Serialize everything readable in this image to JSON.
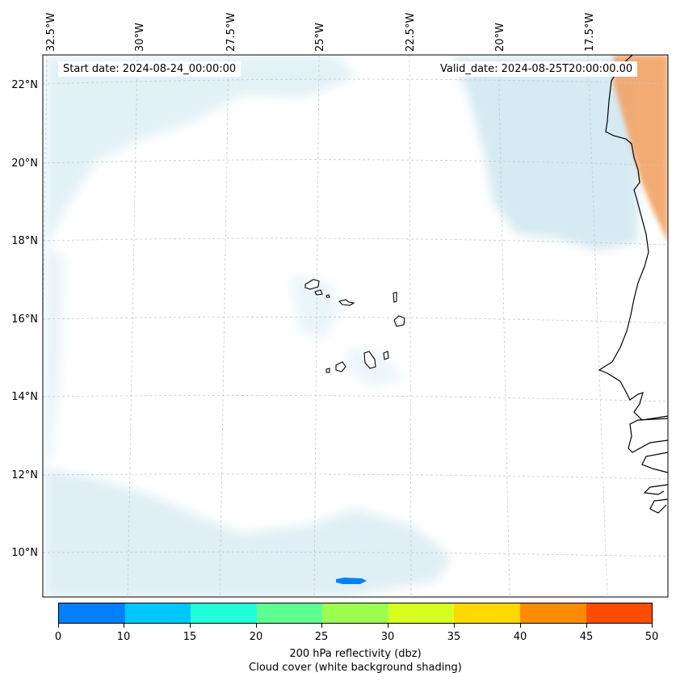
{
  "header": {
    "start_date": "Start date: 2024-08-24_00:00:00",
    "valid_date": "Valid_date: 2024-08-25T20:00:00.00"
  },
  "axes": {
    "lon_labels": [
      "32.5°W",
      "30°W",
      "27.5°W",
      "25°W",
      "22.5°W",
      "20°W",
      "17.5°W"
    ],
    "lat_labels": [
      "22°N",
      "20°N",
      "18°N",
      "16°N",
      "14°N",
      "12°N",
      "10°N"
    ]
  },
  "colorbar": {
    "ticks": [
      "0",
      "10",
      "15",
      "20",
      "25",
      "30",
      "35",
      "40",
      "45",
      "50"
    ],
    "colors": [
      "#0080ff",
      "#00c8ff",
      "#20ffd8",
      "#5cff90",
      "#9cff50",
      "#d8ff20",
      "#ffd800",
      "#ff8c00",
      "#ff4c00"
    ],
    "label_line1": "200 hPa reflectivity (dbz)",
    "label_line2": "Cloud cover (white background shading)"
  },
  "map": {
    "cloud_color": "#cfe8f0",
    "dust_color": "#f3a466",
    "reflectivity_color": "#0080ff"
  }
}
